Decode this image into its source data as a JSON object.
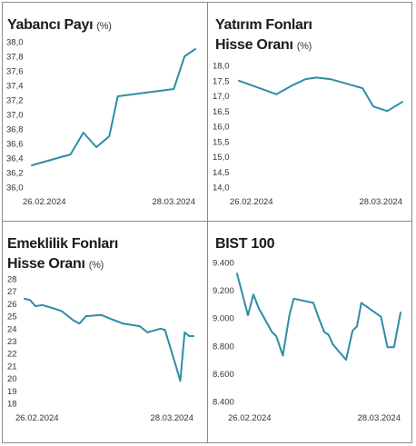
{
  "chart_data": [
    {
      "type": "line",
      "title": "Yabancı Payı",
      "unit": "(%)",
      "y_ticks": [
        "38,0",
        "37,8",
        "37,6",
        "37,4",
        "37,2",
        "37,0",
        "36,8",
        "36,6",
        "36,4",
        "36,2",
        "36,0"
      ],
      "ylim": [
        36.0,
        38.0
      ],
      "x_labels": [
        "26.02.2024",
        "28.03.2024"
      ],
      "color": "#2e8ca6",
      "series": [
        {
          "values": [
            [
              0,
              36.3
            ],
            [
              0.36,
              36.45
            ],
            [
              0.48,
              36.75
            ],
            [
              0.6,
              36.55
            ],
            [
              0.72,
              36.7
            ],
            [
              0.8,
              37.25
            ],
            [
              1.32,
              37.35
            ],
            [
              1.42,
              37.8
            ],
            [
              1.52,
              37.9
            ]
          ]
        }
      ]
    },
    {
      "type": "line",
      "title": [
        "Yatırım Fonları",
        "Hisse Oranı"
      ],
      "unit": "(%)",
      "y_ticks": [
        "18,0",
        "17,5",
        "17,0",
        "16,5",
        "16,0",
        "15,5",
        "15,0",
        "14,5",
        "14,0"
      ],
      "ylim": [
        14.0,
        18.0
      ],
      "x_labels": [
        "26.02.2024",
        "28.03.2024"
      ],
      "color": "#2e8ca6",
      "series": [
        {
          "values": [
            [
              0,
              17.5
            ],
            [
              0.35,
              17.05
            ],
            [
              0.5,
              17.35
            ],
            [
              0.62,
              17.55
            ],
            [
              0.72,
              17.6
            ],
            [
              0.85,
              17.55
            ],
            [
              1.0,
              17.4
            ],
            [
              1.15,
              17.25
            ],
            [
              1.25,
              16.65
            ],
            [
              1.38,
              16.5
            ],
            [
              1.52,
              16.8
            ]
          ]
        }
      ]
    },
    {
      "type": "line",
      "title": [
        "Emeklilik Fonları",
        "Hisse Oranı"
      ],
      "unit": "(%)",
      "y_ticks": [
        "28",
        "27",
        "26",
        "25",
        "24",
        "23",
        "22",
        "21",
        "20",
        "19",
        "18"
      ],
      "ylim": [
        18,
        28
      ],
      "x_labels": [
        "26.02.2024",
        "28.03.2024"
      ],
      "color": "#2e8ca6",
      "series": [
        {
          "values": [
            [
              0,
              26.4
            ],
            [
              0.05,
              26.3
            ],
            [
              0.1,
              25.8
            ],
            [
              0.16,
              25.9
            ],
            [
              0.24,
              25.7
            ],
            [
              0.34,
              25.4
            ],
            [
              0.44,
              24.7
            ],
            [
              0.5,
              24.4
            ],
            [
              0.56,
              25.0
            ],
            [
              0.7,
              25.1
            ],
            [
              0.78,
              24.8
            ],
            [
              0.9,
              24.4
            ],
            [
              1.05,
              24.2
            ],
            [
              1.12,
              23.7
            ],
            [
              1.2,
              23.9
            ],
            [
              1.24,
              24.0
            ],
            [
              1.28,
              23.9
            ],
            [
              1.38,
              21.0
            ],
            [
              1.42,
              19.8
            ],
            [
              1.46,
              23.7
            ],
            [
              1.5,
              23.4
            ],
            [
              1.54,
              23.4
            ]
          ]
        }
      ]
    },
    {
      "type": "line",
      "title": "BIST 100",
      "unit": "",
      "y_ticks": [
        "9.400",
        "9.200",
        "9.000",
        "8.800",
        "8.600",
        "8.400"
      ],
      "ylim": [
        8400,
        9400
      ],
      "x_labels": [
        "26.02.2024",
        "28.03.2024"
      ],
      "color": "#2e8ca6",
      "series": [
        {
          "values": [
            [
              0,
              9320
            ],
            [
              0.1,
              9020
            ],
            [
              0.15,
              9170
            ],
            [
              0.2,
              9070
            ],
            [
              0.32,
              8900
            ],
            [
              0.36,
              8870
            ],
            [
              0.42,
              8730
            ],
            [
              0.48,
              9020
            ],
            [
              0.52,
              9140
            ],
            [
              0.7,
              9110
            ],
            [
              0.74,
              9020
            ],
            [
              0.8,
              8900
            ],
            [
              0.84,
              8880
            ],
            [
              0.88,
              8810
            ],
            [
              1.0,
              8700
            ],
            [
              1.06,
              8910
            ],
            [
              1.1,
              8940
            ],
            [
              1.14,
              9110
            ],
            [
              1.32,
              9010
            ],
            [
              1.38,
              8790
            ],
            [
              1.44,
              8790
            ],
            [
              1.5,
              9040
            ]
          ]
        }
      ]
    }
  ]
}
